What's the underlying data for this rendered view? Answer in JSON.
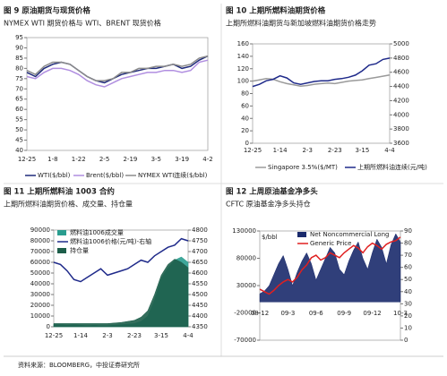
{
  "chart_data": [
    {
      "type": "line",
      "title": "图 9  原油期货与现货价格",
      "subtitle": "NYMEX WTI 期货价格与 WTI、BRENT 现货价格",
      "categories": [
        "12-25",
        null,
        null,
        "1-8",
        null,
        null,
        "1-22",
        null,
        null,
        "2-5",
        null,
        null,
        "2-19",
        null,
        null,
        "3-5",
        null,
        null,
        "3-19",
        null,
        null,
        "4-2"
      ],
      "series": [
        {
          "name": "WTI($/bbl)",
          "color": "#1f2a7a",
          "values": [
            78,
            76,
            80,
            82,
            83,
            82,
            79,
            76,
            74,
            73,
            75,
            77,
            78,
            79,
            80,
            80,
            81,
            82,
            80,
            81,
            84,
            86
          ]
        },
        {
          "name": "Brent($/bbl)",
          "color": "#b08ee0",
          "values": [
            76,
            75,
            78,
            80,
            80,
            79,
            77,
            74,
            72,
            71,
            73,
            75,
            76,
            77,
            78,
            78,
            79,
            79,
            78,
            79,
            83,
            84
          ]
        },
        {
          "name": "NYMEX WTI连续($/bbl)",
          "color": "#8a8a8a",
          "values": [
            79,
            77,
            81,
            83,
            83,
            82,
            79,
            76,
            74,
            74,
            75,
            78,
            78,
            80,
            80,
            81,
            81,
            82,
            81,
            82,
            85,
            86
          ]
        }
      ],
      "ylim": [
        40,
        95
      ],
      "yticks": [
        40,
        45,
        50,
        55,
        60,
        65,
        70,
        75,
        80,
        85,
        90,
        95
      ]
    },
    {
      "type": "line",
      "title": "图 10  上期所燃料油期货价格",
      "subtitle": "上期所燃料油期货与新加坡燃料油期货价格走势",
      "categories": [
        "12-25",
        null,
        null,
        null,
        "1-14",
        null,
        null,
        null,
        "2-3",
        null,
        null,
        null,
        "2-23",
        null,
        null,
        null,
        "3-15",
        null,
        null,
        null,
        "4-4"
      ],
      "series": [
        {
          "name": "Singapore 3.5%($/MT)",
          "color": "#9a9a9a",
          "values": [
            100,
            102,
            104,
            103,
            99,
            96,
            94,
            92,
            93,
            95,
            96,
            97,
            96,
            98,
            100,
            101,
            102,
            104,
            106,
            108,
            110
          ]
        },
        {
          "name": "上期所燃料油连续(元/吨)",
          "color": "#1f2a8a",
          "axis": "y2",
          "values": [
            4400,
            4430,
            4480,
            4500,
            4550,
            4520,
            4450,
            4430,
            4450,
            4470,
            4480,
            4480,
            4500,
            4510,
            4530,
            4560,
            4620,
            4700,
            4720,
            4780,
            4800
          ]
        }
      ],
      "ylim": [
        0,
        160
      ],
      "yticks": [
        0,
        20,
        40,
        60,
        80,
        100,
        120,
        140,
        160
      ],
      "y2lim": [
        3600,
        5000
      ],
      "y2ticks": [
        3600,
        3800,
        4000,
        4200,
        4400,
        4600,
        4800,
        5000
      ]
    },
    {
      "type": "line",
      "title": "图 11  上期所燃料油 1003 合约",
      "subtitle": "上期所燃料油期货价格、成交量、持仓量",
      "categories": [
        "12-25",
        null,
        null,
        null,
        "1-14",
        null,
        null,
        null,
        "2-3",
        null,
        null,
        null,
        "2-23",
        null,
        null,
        null,
        "3-15",
        null,
        null,
        null,
        "4-4"
      ],
      "series": [
        {
          "name": "燃料油1006成交量",
          "color": "#2a9d8f",
          "style": "area",
          "values": [
            2000,
            2000,
            1500,
            2000,
            1500,
            1000,
            1500,
            1000,
            1000,
            1500,
            2000,
            2500,
            3000,
            5000,
            10000,
            25000,
            45000,
            55000,
            62000,
            65000,
            60000
          ]
        },
        {
          "name": "燃料油1006价格(元/吨)-右轴",
          "color": "#1f2a8a",
          "axis": "y2",
          "values": [
            4650,
            4640,
            4610,
            4570,
            4560,
            4580,
            4600,
            4620,
            4590,
            4600,
            4610,
            4620,
            4640,
            4660,
            4650,
            4680,
            4700,
            4720,
            4730,
            4760,
            4750
          ]
        },
        {
          "name": "持仓量",
          "color": "#1d5e4a",
          "style": "area",
          "values": [
            3000,
            3000,
            3000,
            3000,
            3000,
            3000,
            3000,
            3000,
            3000,
            3500,
            4000,
            5000,
            6000,
            9000,
            15000,
            30000,
            48000,
            58000,
            63000,
            60000,
            55000
          ]
        }
      ],
      "ylim": [
        0,
        90000
      ],
      "yticks": [
        0,
        10000,
        20000,
        30000,
        40000,
        50000,
        60000,
        70000,
        80000,
        90000
      ],
      "y2lim": [
        4350,
        4800
      ],
      "y2ticks": [
        4350,
        4400,
        4450,
        4500,
        4550,
        4600,
        4650,
        4700,
        4750,
        4800
      ]
    },
    {
      "type": "line",
      "title": "图 12  上周原油基金净多头",
      "subtitle": "CFTC 原油基金净多头持仓",
      "y_label": "$/bbl",
      "categories": [
        "08-12",
        null,
        null,
        null,
        null,
        null,
        "09-3",
        null,
        null,
        null,
        null,
        null,
        "09-6",
        null,
        null,
        null,
        null,
        null,
        "09-9",
        null,
        null,
        null,
        null,
        null,
        "09-12",
        null,
        null,
        null,
        null,
        null,
        "10-3"
      ],
      "series": [
        {
          "name": "Net Noncommercial Long",
          "color": "#1a2a6c",
          "style": "area",
          "values": [
            15000,
            20000,
            30000,
            50000,
            70000,
            85000,
            60000,
            30000,
            55000,
            75000,
            90000,
            70000,
            40000,
            60000,
            80000,
            100000,
            90000,
            60000,
            50000,
            75000,
            95000,
            110000,
            80000,
            60000,
            90000,
            115000,
            100000,
            70000,
            105000,
            125000,
            110000
          ]
        },
        {
          "name": "Generic Price",
          "color": "#e02020",
          "axis": "y2",
          "values": [
            42,
            40,
            38,
            41,
            45,
            48,
            50,
            48,
            52,
            58,
            62,
            68,
            70,
            66,
            68,
            72,
            70,
            68,
            72,
            75,
            78,
            76,
            72,
            77,
            80,
            78,
            75,
            79,
            81,
            82,
            85
          ]
        }
      ],
      "ylim": [
        -70000,
        130000
      ],
      "yticks": [
        -70000,
        -20000,
        30000,
        80000,
        130000
      ],
      "y2lim": [
        0,
        90
      ],
      "y2ticks": [
        0,
        10,
        20,
        30,
        40,
        50,
        60,
        70,
        80,
        90
      ]
    }
  ],
  "source": "资料来源：BLOOMBERG，中投证券研究所"
}
